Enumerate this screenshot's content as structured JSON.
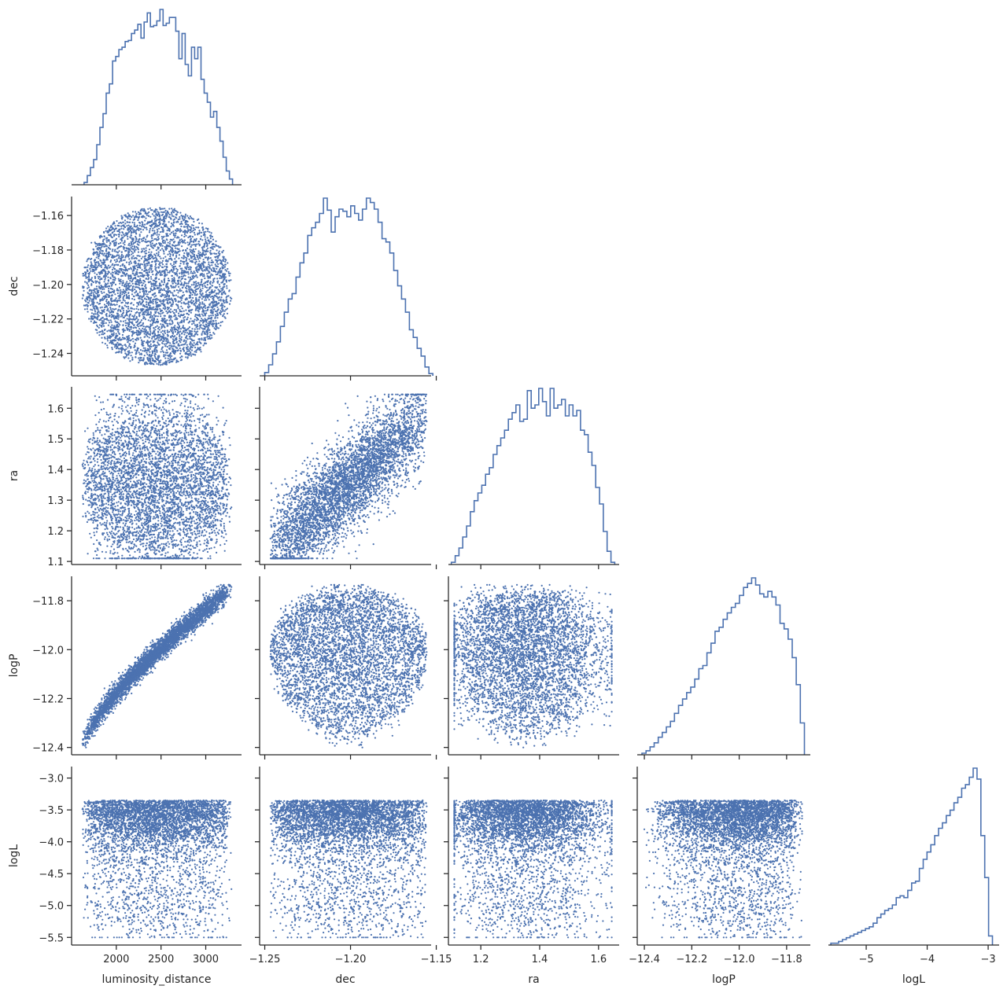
{
  "chart_data": {
    "type": "scatter",
    "layout": "corner",
    "title": "",
    "color": "#4c72b0",
    "variables": [
      "luminosity_distance",
      "dec",
      "ra",
      "logP",
      "logL"
    ],
    "axes": {
      "luminosity_distance": {
        "label": "luminosity_distance",
        "range": [
          1500,
          3400
        ],
        "ticks": [
          2000,
          2500,
          3000
        ],
        "tick_labels": [
          "2000",
          "2500",
          "3000"
        ]
      },
      "dec": {
        "label": "dec",
        "range": [
          -1.253,
          -1.153
        ],
        "ticks": [
          -1.25,
          -1.2,
          -1.15
        ],
        "tick_labels": [
          "−1.25",
          "−1.20",
          "−1.15"
        ],
        "ytick_values": [
          -1.16,
          -1.18,
          -1.2,
          -1.22,
          -1.24
        ],
        "ytick_labels": [
          "−1.16",
          "−1.18",
          "−1.20",
          "−1.22",
          "−1.24"
        ],
        "yrange": [
          -1.253,
          -1.149
        ]
      },
      "ra": {
        "label": "ra",
        "range": [
          1.09,
          1.67
        ],
        "ticks": [
          1.2,
          1.4,
          1.6
        ],
        "tick_labels": [
          "1.2",
          "1.4",
          "1.6"
        ],
        "ytick_values": [
          1.1,
          1.2,
          1.3,
          1.4,
          1.5,
          1.6
        ],
        "ytick_labels": [
          "1.1",
          "1.2",
          "1.3",
          "1.4",
          "1.5",
          "1.6"
        ],
        "yrange": [
          1.09,
          1.67
        ]
      },
      "logP": {
        "label": "logP",
        "range": [
          -12.43,
          -11.7
        ],
        "ticks": [
          -12.4,
          -12.2,
          -12.0,
          -11.8
        ],
        "tick_labels": [
          "−12.4",
          "−12.2",
          "−12.0",
          "−11.8"
        ],
        "ytick_values": [
          -11.8,
          -12.0,
          -12.2,
          -12.4
        ],
        "ytick_labels": [
          "−11.8",
          "−12.0",
          "−12.2",
          "−12.4"
        ],
        "yrange": [
          -12.43,
          -11.7
        ]
      },
      "logL": {
        "label": "logL",
        "range": [
          -5.62,
          -2.82
        ],
        "ticks": [
          -5,
          -4,
          -3
        ],
        "tick_labels": [
          "−5",
          "−4",
          "−3"
        ],
        "ytick_values": [
          -3.0,
          -3.5,
          -4.0,
          -4.5,
          -5.0,
          -5.5
        ],
        "ytick_labels": [
          "−3.0",
          "−3.5",
          "−4.0",
          "−4.5",
          "−5.0",
          "−5.5"
        ],
        "yrange": [
          -5.62,
          -2.82
        ]
      }
    },
    "histograms": {
      "luminosity_distance": {
        "range": [
          1640,
          3300
        ],
        "counts": [
          2,
          8,
          15,
          22,
          35,
          50,
          62,
          80,
          88,
          108,
          112,
          118,
          120,
          125,
          126,
          132,
          135,
          140,
          128,
          142,
          150,
          138,
          139,
          143,
          153,
          139,
          141,
          146,
          146,
          134,
          110,
          132,
          105,
          95,
          120,
          110,
          120,
          92,
          80,
          72,
          59,
          64,
          50,
          38,
          24,
          12,
          5
        ]
      },
      "dec": {
        "range": [
          -1.25,
          -1.152
        ],
        "counts": [
          3,
          10,
          20,
          31,
          45,
          58,
          70,
          75,
          90,
          103,
          112,
          128,
          135,
          140,
          148,
          162,
          151,
          131,
          145,
          152,
          150,
          145,
          155,
          148,
          142,
          152,
          162,
          158,
          152,
          140,
          125,
          122,
          112,
          96,
          82,
          70,
          58,
          42,
          35,
          25,
          18,
          8,
          2
        ]
      },
      "ra": {
        "range": [
          1.1,
          1.655
        ],
        "counts": [
          2,
          8,
          15,
          25,
          35,
          48,
          58,
          65,
          72,
          82,
          88,
          100,
          108,
          115,
          122,
          132,
          138,
          145,
          130,
          132,
          158,
          142,
          145,
          160,
          148,
          135,
          160,
          142,
          145,
          150,
          135,
          145,
          135,
          140,
          122,
          118,
          102,
          90,
          70,
          55,
          30,
          12,
          2
        ]
      },
      "logP": {
        "range": [
          -12.41,
          -11.725
        ],
        "counts": [
          2,
          5,
          10,
          15,
          22,
          28,
          35,
          42,
          52,
          62,
          70,
          78,
          85,
          95,
          108,
          112,
          128,
          140,
          155,
          160,
          170,
          178,
          185,
          190,
          200,
          210,
          215,
          222,
          213,
          202,
          198,
          205,
          198,
          188,
          165,
          158,
          145,
          122,
          88,
          40
        ]
      },
      "logL": {
        "range": [
          -5.58,
          -2.93
        ],
        "counts": [
          2,
          2,
          4,
          6,
          8,
          10,
          12,
          14,
          16,
          18,
          20,
          24,
          30,
          34,
          38,
          40,
          44,
          52,
          54,
          52,
          60,
          68,
          70,
          84,
          94,
          102,
          110,
          120,
          128,
          134,
          142,
          148,
          156,
          162,
          172,
          176,
          184,
          194,
          182,
          120,
          74,
          10
        ]
      }
    },
    "scatter_count": 4500
  }
}
